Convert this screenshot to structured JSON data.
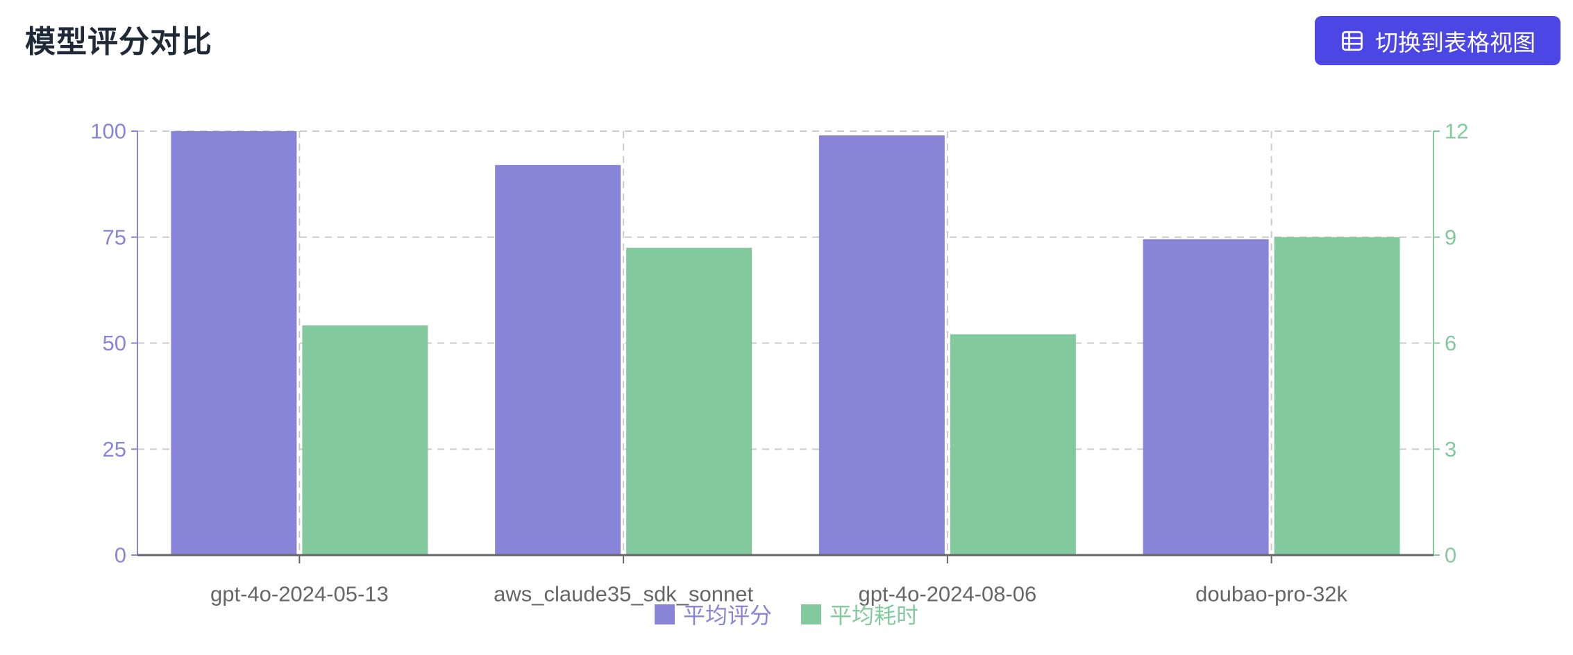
{
  "page": {
    "title": "模型评分对比"
  },
  "toolbar": {
    "switch_view_label": "切换到表格视图"
  },
  "colors": {
    "title": "#1f2937",
    "button_bg": "#4c46e5",
    "button_text": "#ffffff",
    "score": "#8884d8",
    "time": "#82ca9d",
    "grid": "#cccccc",
    "x_axis": "#666666",
    "background": "#ffffff"
  },
  "chart_data": {
    "type": "bar",
    "title": "模型评分对比",
    "categories": [
      "gpt-4o-2024-05-13",
      "aws_claude35_sdk_sonnet",
      "gpt-4o-2024-08-06",
      "doubao-pro-32k"
    ],
    "series": [
      {
        "name": "平均评分",
        "axis": "left",
        "color": "#8884d8",
        "values": [
          100,
          92,
          99,
          74.5
        ]
      },
      {
        "name": "平均耗时",
        "axis": "right",
        "color": "#82ca9d",
        "values": [
          6.5,
          8.7,
          6.25,
          9
        ]
      }
    ],
    "left_axis": {
      "min": 0,
      "max": 100,
      "ticks": [
        0,
        25,
        50,
        75,
        100
      ],
      "color": "#8884d8"
    },
    "right_axis": {
      "min": 0,
      "max": 12,
      "ticks": [
        0,
        3,
        6,
        9,
        12
      ],
      "color": "#82ca9d"
    },
    "grid": {
      "horizontal": true,
      "vertical": true,
      "style": "dashed",
      "color": "#cccccc"
    },
    "legend_position": "bottom"
  }
}
